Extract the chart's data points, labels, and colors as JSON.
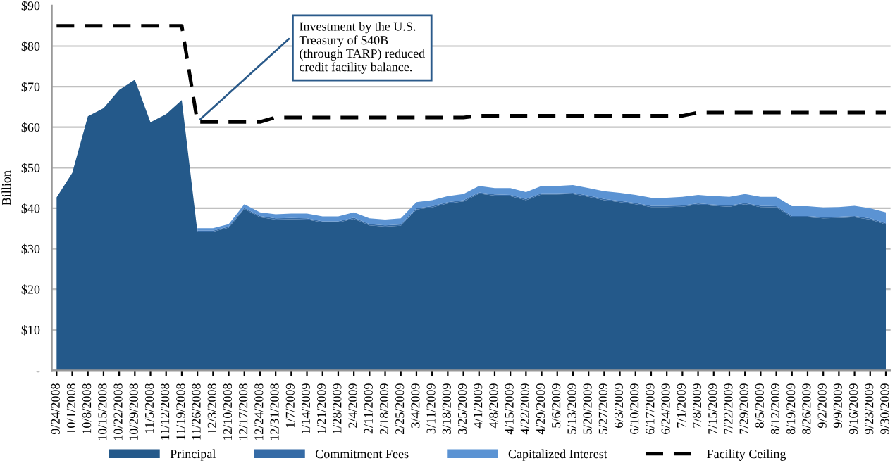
{
  "chart_data": {
    "type": "area",
    "stacked": true,
    "ylabel": "Billion",
    "categories": [
      "9/24/2008",
      "10/1/2008",
      "10/8/2008",
      "10/15/2008",
      "10/22/2008",
      "10/29/2008",
      "11/5/2008",
      "11/12/2008",
      "11/19/2008",
      "11/26/2008",
      "12/3/2008",
      "12/10/2008",
      "12/17/2008",
      "12/24/2008",
      "12/31/2008",
      "1/7/2009",
      "1/14/2009",
      "1/21/2009",
      "1/28/2009",
      "2/4/2009",
      "2/11/2009",
      "2/18/2009",
      "2/25/2009",
      "3/4/2009",
      "3/11/2009",
      "3/18/2009",
      "3/25/2009",
      "4/1/2009",
      "4/8/2009",
      "4/15/2009",
      "4/22/2009",
      "4/29/2009",
      "5/6/2009",
      "5/13/2009",
      "5/20/2009",
      "5/27/2009",
      "6/3/2009",
      "6/10/2009",
      "6/17/2009",
      "6/24/2009",
      "7/1/2009",
      "7/8/2009",
      "7/15/2009",
      "7/22/2009",
      "7/29/2009",
      "8/5/2009",
      "8/12/2009",
      "8/19/2009",
      "8/26/2009",
      "9/2/2009",
      "9/9/2009",
      "9/16/2009",
      "9/23/2009",
      "9/30/2009"
    ],
    "series": [
      {
        "name": "Principal",
        "color": "#24598a",
        "values": [
          42.7,
          48.7,
          62.7,
          64.7,
          69.2,
          71.7,
          61.2,
          63.2,
          66.7,
          34.2,
          34.2,
          35.2,
          39.8,
          37.8,
          37.2,
          37.3,
          37.2,
          36.5,
          36.5,
          37.4,
          35.8,
          35.5,
          35.7,
          39.7,
          40.2,
          41.2,
          41.7,
          43.6,
          43.1,
          43.0,
          42.0,
          43.4,
          43.4,
          43.5,
          42.8,
          42.0,
          41.5,
          41.0,
          40.3,
          40.3,
          40.4,
          40.9,
          40.6,
          40.4,
          41.0,
          40.3,
          40.2,
          37.8,
          37.8,
          37.5,
          37.6,
          37.8,
          37.2,
          36.0
        ]
      },
      {
        "name": "Commitment Fees",
        "color": "#356ba6",
        "values": [
          null,
          null,
          null,
          null,
          null,
          null,
          null,
          null,
          null,
          0.3,
          0.3,
          0.3,
          0.3,
          0.3,
          0.3,
          0.3,
          0.3,
          0.3,
          0.3,
          0.3,
          0.3,
          0.3,
          0.3,
          0.3,
          0.3,
          0.3,
          0.3,
          0.3,
          0.3,
          0.3,
          0.3,
          0.3,
          0.3,
          0.3,
          0.3,
          0.3,
          0.3,
          0.3,
          0.3,
          0.3,
          0.3,
          0.3,
          0.3,
          0.3,
          0.3,
          0.3,
          0.3,
          0.3,
          0.3,
          0.3,
          0.3,
          0.3,
          0.3,
          0.3
        ]
      },
      {
        "name": "Capitalized Interest",
        "color": "#5b93d3",
        "values": [
          null,
          null,
          null,
          null,
          null,
          null,
          null,
          null,
          null,
          0.6,
          0.6,
          0.6,
          0.9,
          0.9,
          1.0,
          1.1,
          1.2,
          1.2,
          1.2,
          1.3,
          1.4,
          1.4,
          1.5,
          1.5,
          1.5,
          1.5,
          1.5,
          1.6,
          1.6,
          1.7,
          1.7,
          1.8,
          1.8,
          1.9,
          1.9,
          1.9,
          2.0,
          2.0,
          2.0,
          2.0,
          2.1,
          2.1,
          2.1,
          2.1,
          2.2,
          2.2,
          2.3,
          2.4,
          2.4,
          2.4,
          2.4,
          2.5,
          2.5,
          2.7
        ]
      },
      {
        "name": "Facility Ceiling",
        "type": "line",
        "line_style": "dashed",
        "color": "#000000",
        "values": [
          85,
          85,
          85,
          85,
          85,
          85,
          85,
          85,
          85,
          61.3,
          61.3,
          61.3,
          61.3,
          61.3,
          62.4,
          62.4,
          62.4,
          62.4,
          62.4,
          62.4,
          62.4,
          62.4,
          62.4,
          62.4,
          62.4,
          62.4,
          62.4,
          62.8,
          62.8,
          62.8,
          62.8,
          62.8,
          62.8,
          62.8,
          62.8,
          62.8,
          62.8,
          62.8,
          62.8,
          62.8,
          62.8,
          63.6,
          63.6,
          63.6,
          63.6,
          63.6,
          63.6,
          63.6,
          63.6,
          63.6,
          63.6,
          63.6,
          63.6,
          63.6
        ]
      }
    ],
    "ylim": [
      0,
      90
    ],
    "yticks": [
      {
        "value": 0,
        "label": "-"
      },
      {
        "value": 10,
        "label": "$10"
      },
      {
        "value": 20,
        "label": "$20"
      },
      {
        "value": 30,
        "label": "$30"
      },
      {
        "value": 40,
        "label": "$40"
      },
      {
        "value": 50,
        "label": "$50"
      },
      {
        "value": 60,
        "label": "$60"
      },
      {
        "value": 70,
        "label": "$70"
      },
      {
        "value": 80,
        "label": "$80"
      },
      {
        "value": 90,
        "label": "$90"
      }
    ],
    "grid": "y",
    "legend": "bottom",
    "annotations": [
      {
        "text": "Investment by the U.S.\nTreasury of $40B\n(through TARP) reduced\ncredit facility balance.",
        "x": "11/26/2008",
        "y": 61.3
      }
    ]
  }
}
